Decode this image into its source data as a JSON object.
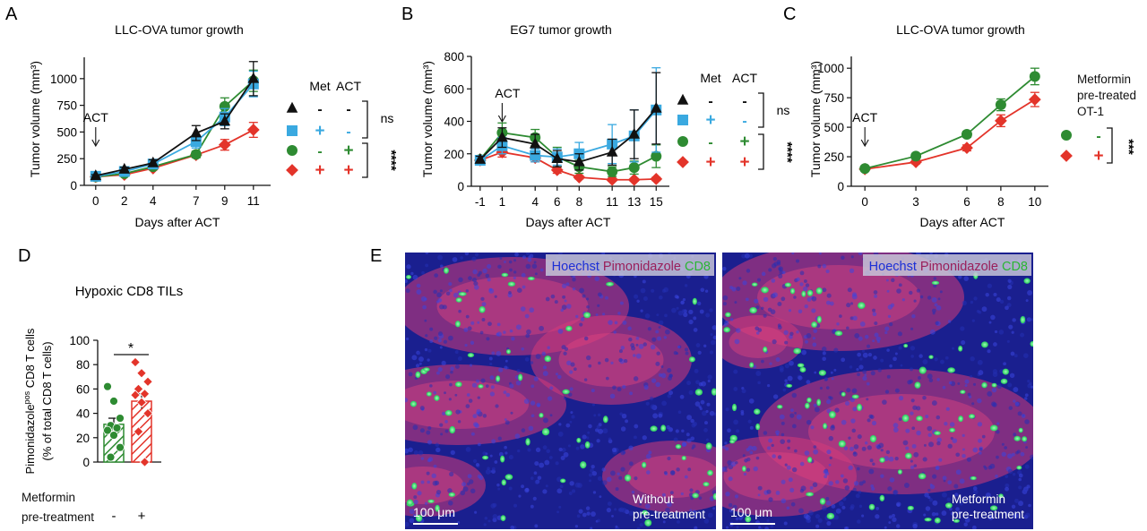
{
  "figure": {
    "micrographs": {
      "channels": [
        "Hoechst",
        "Pimonidazole",
        "CD8"
      ],
      "channel_colors": [
        "#1c2fd6",
        "#9a1f5b",
        "#2bb534"
      ],
      "scale_label": "100 μm",
      "captions": [
        "Without\npre-treatment",
        "Metformin\npre-treatment"
      ],
      "tissue_colors": {
        "nuclei": "#2a2fb8",
        "hypoxic": "#d33a78",
        "cd8": "#3df06a"
      }
    }
  },
  "chart_data": [
    {
      "panel": "A",
      "type": "line",
      "title": "LLC-OVA tumor growth",
      "xlabel": "Days after ACT",
      "ylabel": "Tumor volume (mm³)",
      "x": [
        0,
        2,
        4,
        7,
        9,
        11
      ],
      "xticks": [
        0,
        2,
        4,
        7,
        9,
        11
      ],
      "xlim": [
        -0.8,
        12.2
      ],
      "ylim": [
        0,
        1200
      ],
      "yticks": [
        0,
        250,
        500,
        750,
        1000
      ],
      "annotation": "ACT",
      "annotation_x": 0,
      "legend_headers": [
        "Met",
        "ACT"
      ],
      "significance": [
        "ns",
        "****"
      ],
      "series": [
        {
          "color": "#111111",
          "marker": "triangle",
          "met": "-",
          "act": "-",
          "values": [
            90,
            150,
            210,
            490,
            600,
            1000
          ],
          "errors": [
            10,
            20,
            30,
            70,
            70,
            160
          ]
        },
        {
          "color": "#3aa9e0",
          "marker": "square",
          "met": "+",
          "act": "-",
          "values": [
            85,
            130,
            200,
            410,
            640,
            950
          ],
          "errors": [
            10,
            20,
            25,
            60,
            80,
            120
          ]
        },
        {
          "color": "#2e8b32",
          "marker": "circle",
          "met": "-",
          "act": "+",
          "values": [
            80,
            110,
            175,
            290,
            740,
            980
          ],
          "errors": [
            8,
            15,
            20,
            30,
            80,
            100
          ]
        },
        {
          "color": "#e3342a",
          "marker": "diamond",
          "met": "+",
          "act": "+",
          "values": [
            80,
            100,
            160,
            285,
            380,
            520
          ],
          "errors": [
            8,
            12,
            15,
            25,
            50,
            70
          ]
        }
      ]
    },
    {
      "panel": "B",
      "type": "line",
      "title": "EG7 tumor growth",
      "xlabel": "Days after ACT",
      "ylabel": "Tumor volume (mm³)",
      "x": [
        -1,
        1,
        4,
        6,
        8,
        11,
        13,
        15
      ],
      "xticks": [
        -1,
        1,
        4,
        6,
        8,
        11,
        13,
        15
      ],
      "xlim": [
        -1.8,
        16.2
      ],
      "ylim": [
        0,
        800
      ],
      "yticks": [
        0,
        200,
        400,
        600,
        800
      ],
      "annotation": "ACT",
      "annotation_x": 1,
      "legend_headers": [
        "Met",
        "ACT"
      ],
      "significance": [
        "ns",
        "****"
      ],
      "series": [
        {
          "color": "#111111",
          "marker": "triangle",
          "met": "-",
          "act": "-",
          "values": [
            165,
            300,
            260,
            170,
            150,
            210,
            320,
            480
          ],
          "errors": [
            20,
            60,
            60,
            50,
            50,
            80,
            150,
            220
          ]
        },
        {
          "color": "#3aa9e0",
          "marker": "square",
          "met": "+",
          "act": "-",
          "values": [
            160,
            250,
            190,
            180,
            200,
            260,
            310,
            470
          ],
          "errors": [
            20,
            50,
            40,
            50,
            70,
            120,
            160,
            260
          ]
        },
        {
          "color": "#2e8b32",
          "marker": "circle",
          "met": "-",
          "act": "+",
          "values": [
            165,
            330,
            300,
            180,
            120,
            90,
            115,
            185
          ],
          "errors": [
            20,
            60,
            50,
            60,
            40,
            30,
            40,
            70
          ]
        },
        {
          "color": "#e3342a",
          "marker": "diamond",
          "met": "+",
          "act": "+",
          "values": [
            160,
            210,
            175,
            100,
            55,
            40,
            40,
            45
          ],
          "errors": [
            15,
            30,
            25,
            20,
            10,
            8,
            8,
            10
          ]
        }
      ]
    },
    {
      "panel": "C",
      "type": "line",
      "title": "LLC-OVA tumor growth",
      "xlabel": "Days after ACT",
      "ylabel": "Tumor volume (mm³)",
      "x": [
        0,
        3,
        6,
        8,
        10
      ],
      "xticks": [
        0,
        3,
        6,
        8,
        10
      ],
      "xlim": [
        -0.8,
        10.8
      ],
      "ylim": [
        0,
        1100
      ],
      "yticks": [
        0,
        250,
        500,
        750,
        1000
      ],
      "annotation": "ACT",
      "annotation_x": 0,
      "legend_title": "Metformin\npre-treated\nOT-1",
      "significance": [
        "***"
      ],
      "series": [
        {
          "color": "#2e8b32",
          "marker": "circle",
          "label": "-",
          "values": [
            150,
            255,
            440,
            690,
            930
          ],
          "errors": [
            10,
            20,
            25,
            50,
            70
          ]
        },
        {
          "color": "#e3342a",
          "marker": "diamond",
          "label": "+",
          "values": [
            145,
            205,
            325,
            555,
            735
          ],
          "errors": [
            10,
            15,
            25,
            50,
            60
          ]
        }
      ]
    },
    {
      "panel": "D",
      "type": "bar",
      "title": "Hypoxic CD8 TILs",
      "ylabel": "Pimonidazole^pos CD8 T cells\n(% of total CD8 T cells)",
      "ylim": [
        0,
        100
      ],
      "yticks": [
        0,
        20,
        40,
        60,
        80,
        100
      ],
      "categories": [
        "-",
        "+"
      ],
      "category_header": "Metformin\npre-treatment",
      "significance": [
        "*"
      ],
      "series": [
        {
          "color": "#2e8b32",
          "marker": "circle",
          "value": 31,
          "error": 5,
          "points": [
            62,
            50,
            36,
            30,
            28,
            26,
            22,
            12,
            4
          ]
        },
        {
          "color": "#e3342a",
          "marker": "diamond",
          "value": 50,
          "error": 6,
          "points": [
            82,
            73,
            66,
            60,
            56,
            55,
            49,
            40,
            25,
            0
          ]
        }
      ]
    }
  ]
}
